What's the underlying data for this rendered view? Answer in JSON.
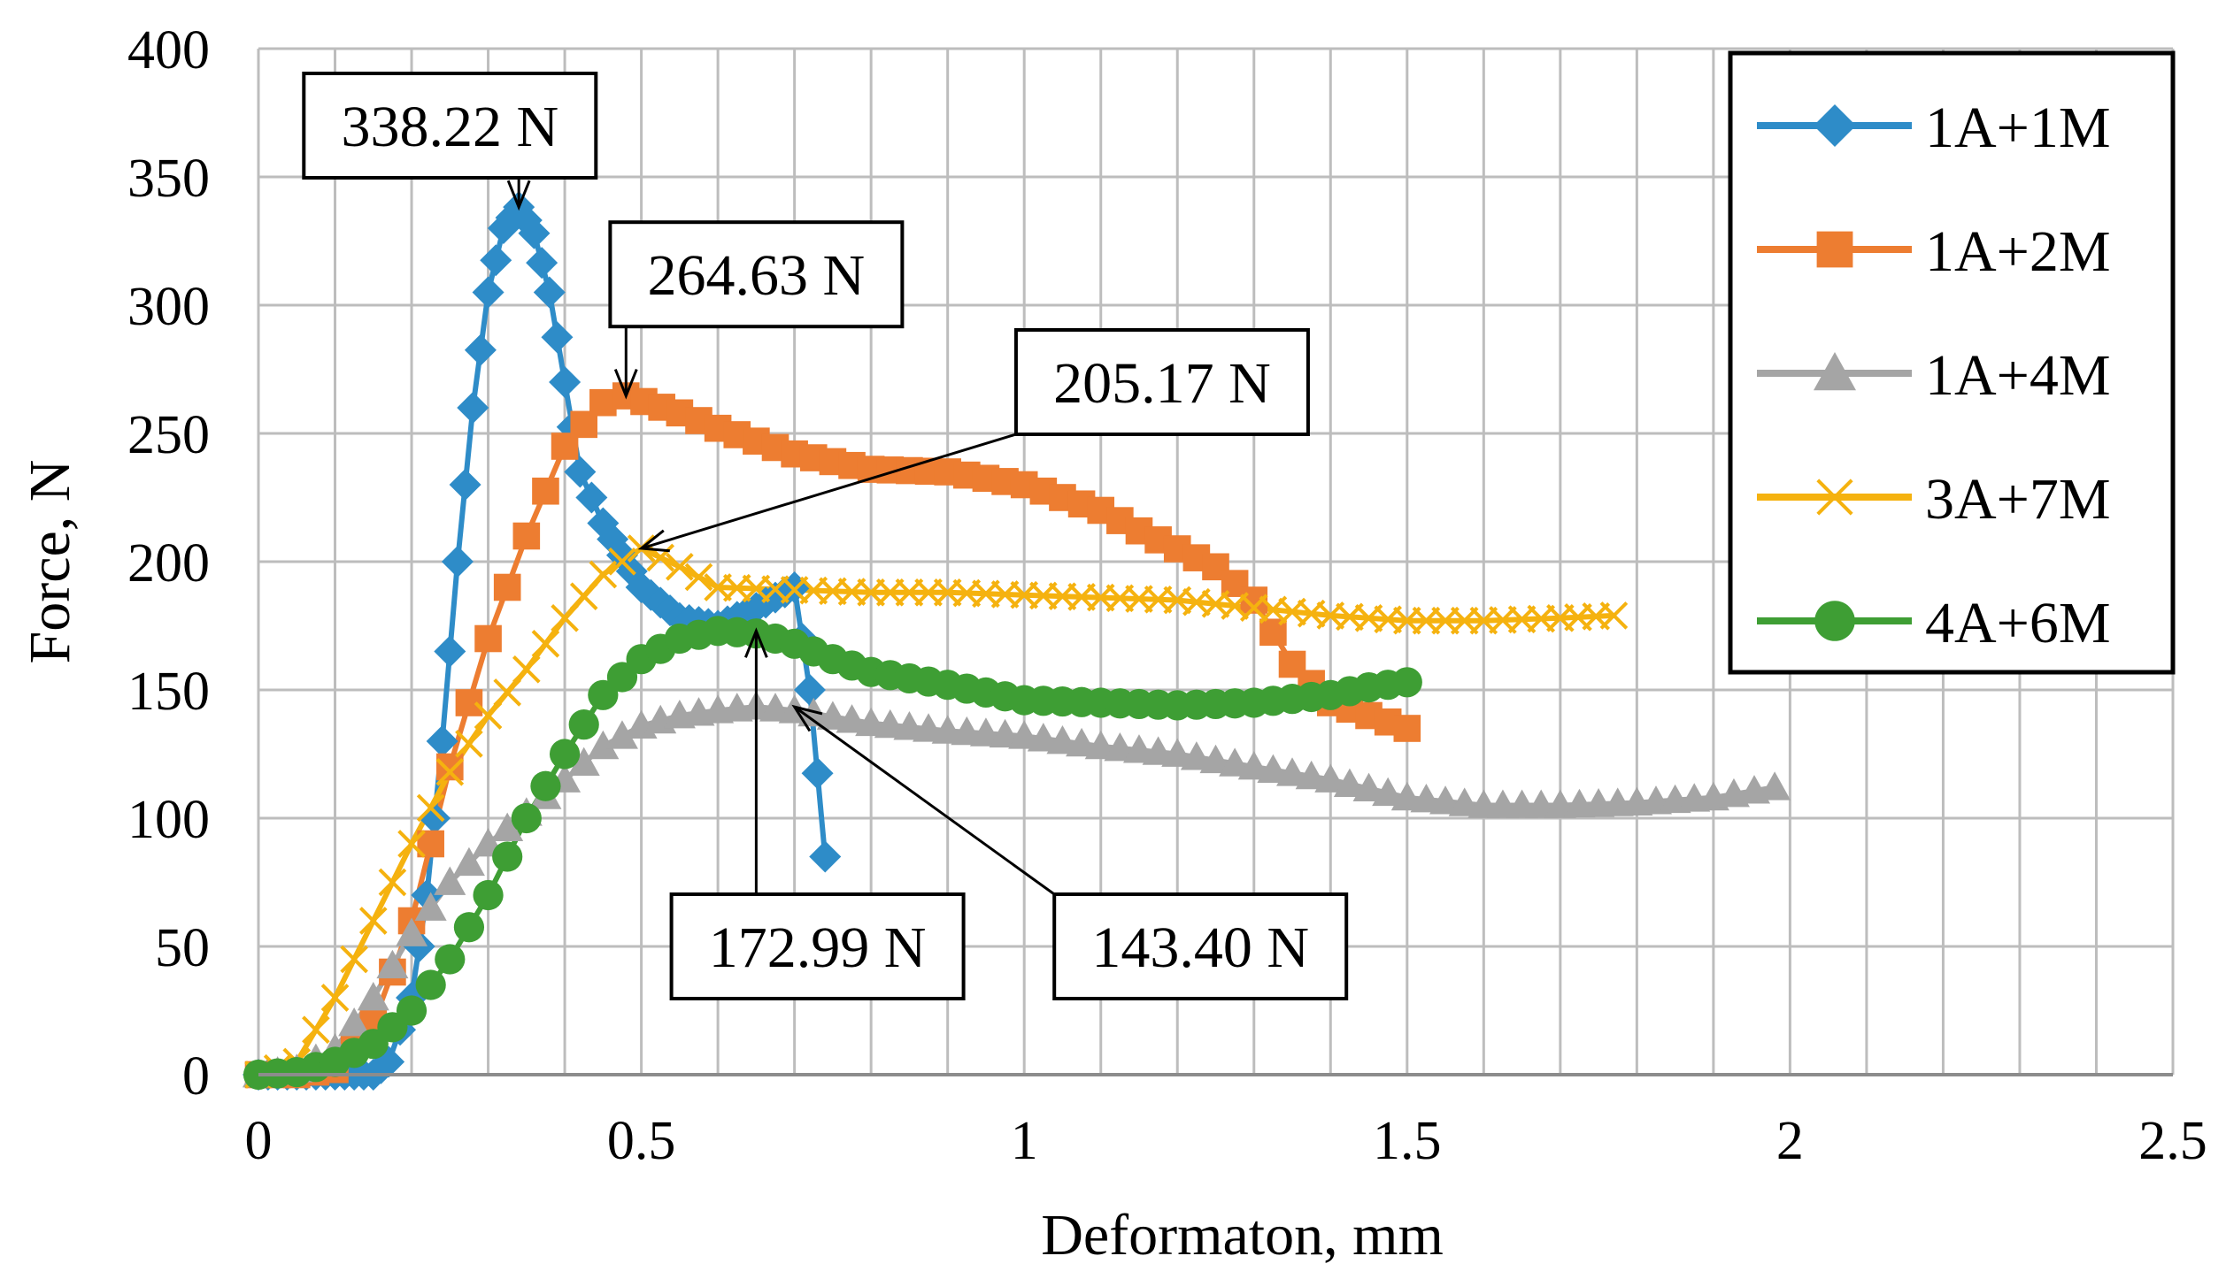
{
  "chart_data": {
    "type": "line",
    "title": "",
    "xlabel": "Deformaton, mm",
    "ylabel": "Force, N",
    "xlim": [
      0,
      2.5
    ],
    "ylim": [
      0,
      400
    ],
    "x_ticks": [
      0,
      0.5,
      1,
      1.5,
      2,
      2.5
    ],
    "x_tick_labels": [
      "0",
      "0.5",
      "1",
      "1.5",
      "2",
      "2.5"
    ],
    "y_ticks": [
      0,
      50,
      100,
      150,
      200,
      250,
      300,
      350,
      400
    ],
    "y_tick_labels": [
      "0",
      "50",
      "100",
      "150",
      "200",
      "250",
      "300",
      "350",
      "400"
    ],
    "grid": true,
    "legend_position": "top-right",
    "series": [
      {
        "name": "1A+1M",
        "color": "#2E8CC8",
        "marker": "diamond",
        "points": [
          [
            0,
            0
          ],
          [
            0.05,
            0
          ],
          [
            0.1,
            0
          ],
          [
            0.15,
            0
          ],
          [
            0.17,
            5
          ],
          [
            0.2,
            30
          ],
          [
            0.22,
            70
          ],
          [
            0.24,
            130
          ],
          [
            0.26,
            200
          ],
          [
            0.28,
            260
          ],
          [
            0.3,
            305
          ],
          [
            0.32,
            330
          ],
          [
            0.34,
            338.22
          ],
          [
            0.36,
            328
          ],
          [
            0.38,
            305
          ],
          [
            0.4,
            270
          ],
          [
            0.42,
            235
          ],
          [
            0.45,
            215
          ],
          [
            0.5,
            190
          ],
          [
            0.55,
            178
          ],
          [
            0.6,
            175
          ],
          [
            0.65,
            182
          ],
          [
            0.7,
            190
          ],
          [
            0.72,
            150
          ],
          [
            0.74,
            85
          ]
        ]
      },
      {
        "name": "1A+2M",
        "color": "#ED7D31",
        "marker": "square",
        "points": [
          [
            0,
            0
          ],
          [
            0.05,
            0
          ],
          [
            0.1,
            2
          ],
          [
            0.15,
            20
          ],
          [
            0.2,
            60
          ],
          [
            0.25,
            120
          ],
          [
            0.3,
            170
          ],
          [
            0.35,
            210
          ],
          [
            0.4,
            245
          ],
          [
            0.45,
            262
          ],
          [
            0.48,
            264.63
          ],
          [
            0.55,
            258
          ],
          [
            0.6,
            252
          ],
          [
            0.7,
            242
          ],
          [
            0.8,
            236
          ],
          [
            0.9,
            235
          ],
          [
            1.0,
            230
          ],
          [
            1.1,
            220
          ],
          [
            1.15,
            212
          ],
          [
            1.2,
            205
          ],
          [
            1.25,
            198
          ],
          [
            1.3,
            185
          ],
          [
            1.35,
            160
          ],
          [
            1.4,
            145
          ],
          [
            1.45,
            140
          ],
          [
            1.5,
            135
          ]
        ]
      },
      {
        "name": "1A+4M",
        "color": "#A5A5A5",
        "marker": "triangle",
        "points": [
          [
            0,
            0
          ],
          [
            0.05,
            2
          ],
          [
            0.1,
            10
          ],
          [
            0.15,
            30
          ],
          [
            0.2,
            55
          ],
          [
            0.25,
            75
          ],
          [
            0.3,
            90
          ],
          [
            0.35,
            102
          ],
          [
            0.4,
            115
          ],
          [
            0.45,
            128
          ],
          [
            0.5,
            136
          ],
          [
            0.55,
            140
          ],
          [
            0.6,
            142
          ],
          [
            0.65,
            143.4
          ],
          [
            0.7,
            142
          ],
          [
            0.8,
            137
          ],
          [
            0.9,
            134
          ],
          [
            1.0,
            132
          ],
          [
            1.1,
            128
          ],
          [
            1.2,
            125
          ],
          [
            1.3,
            120
          ],
          [
            1.4,
            115
          ],
          [
            1.5,
            108
          ],
          [
            1.6,
            105
          ],
          [
            1.7,
            105
          ],
          [
            1.8,
            106
          ],
          [
            1.9,
            108
          ],
          [
            1.98,
            112
          ]
        ]
      },
      {
        "name": "3A+7M",
        "color": "#F5B20F",
        "marker": "x",
        "points": [
          [
            0,
            0
          ],
          [
            0.05,
            5
          ],
          [
            0.1,
            30
          ],
          [
            0.15,
            60
          ],
          [
            0.2,
            90
          ],
          [
            0.25,
            118
          ],
          [
            0.3,
            140
          ],
          [
            0.35,
            158
          ],
          [
            0.4,
            178
          ],
          [
            0.45,
            195
          ],
          [
            0.5,
            205.17
          ],
          [
            0.55,
            198
          ],
          [
            0.6,
            190
          ],
          [
            0.7,
            189
          ],
          [
            0.8,
            188
          ],
          [
            0.9,
            188
          ],
          [
            1.0,
            187
          ],
          [
            1.1,
            186
          ],
          [
            1.2,
            185
          ],
          [
            1.3,
            182
          ],
          [
            1.4,
            179
          ],
          [
            1.5,
            177
          ],
          [
            1.6,
            177
          ],
          [
            1.7,
            178
          ],
          [
            1.77,
            179
          ]
        ]
      },
      {
        "name": "4A+6M",
        "color": "#3E9E34",
        "marker": "circle",
        "points": [
          [
            0,
            0
          ],
          [
            0.05,
            1
          ],
          [
            0.1,
            5
          ],
          [
            0.15,
            12
          ],
          [
            0.2,
            25
          ],
          [
            0.25,
            45
          ],
          [
            0.3,
            70
          ],
          [
            0.35,
            100
          ],
          [
            0.4,
            125
          ],
          [
            0.45,
            148
          ],
          [
            0.5,
            162
          ],
          [
            0.55,
            170
          ],
          [
            0.6,
            172.99
          ],
          [
            0.65,
            172
          ],
          [
            0.7,
            168
          ],
          [
            0.75,
            162
          ],
          [
            0.8,
            157
          ],
          [
            0.9,
            152
          ],
          [
            1.0,
            146
          ],
          [
            1.1,
            145
          ],
          [
            1.2,
            144
          ],
          [
            1.3,
            145
          ],
          [
            1.4,
            148
          ],
          [
            1.45,
            151
          ],
          [
            1.5,
            153
          ]
        ]
      }
    ],
    "annotations": [
      {
        "text": "338.22 N",
        "x": 0.34,
        "y": 338.22,
        "box_x": 0.25,
        "box_y": 370
      },
      {
        "text": "264.63 N",
        "x": 0.48,
        "y": 264.63,
        "box_x": 0.65,
        "box_y": 312
      },
      {
        "text": "205.17 N",
        "x": 0.5,
        "y": 205.17,
        "box_x": 1.18,
        "box_y": 270
      },
      {
        "text": "172.99 N",
        "x": 0.65,
        "y": 172.99,
        "box_x": 0.73,
        "box_y": 50
      },
      {
        "text": "143.40 N",
        "x": 0.7,
        "y": 143.4,
        "box_x": 1.23,
        "box_y": 50
      }
    ]
  }
}
